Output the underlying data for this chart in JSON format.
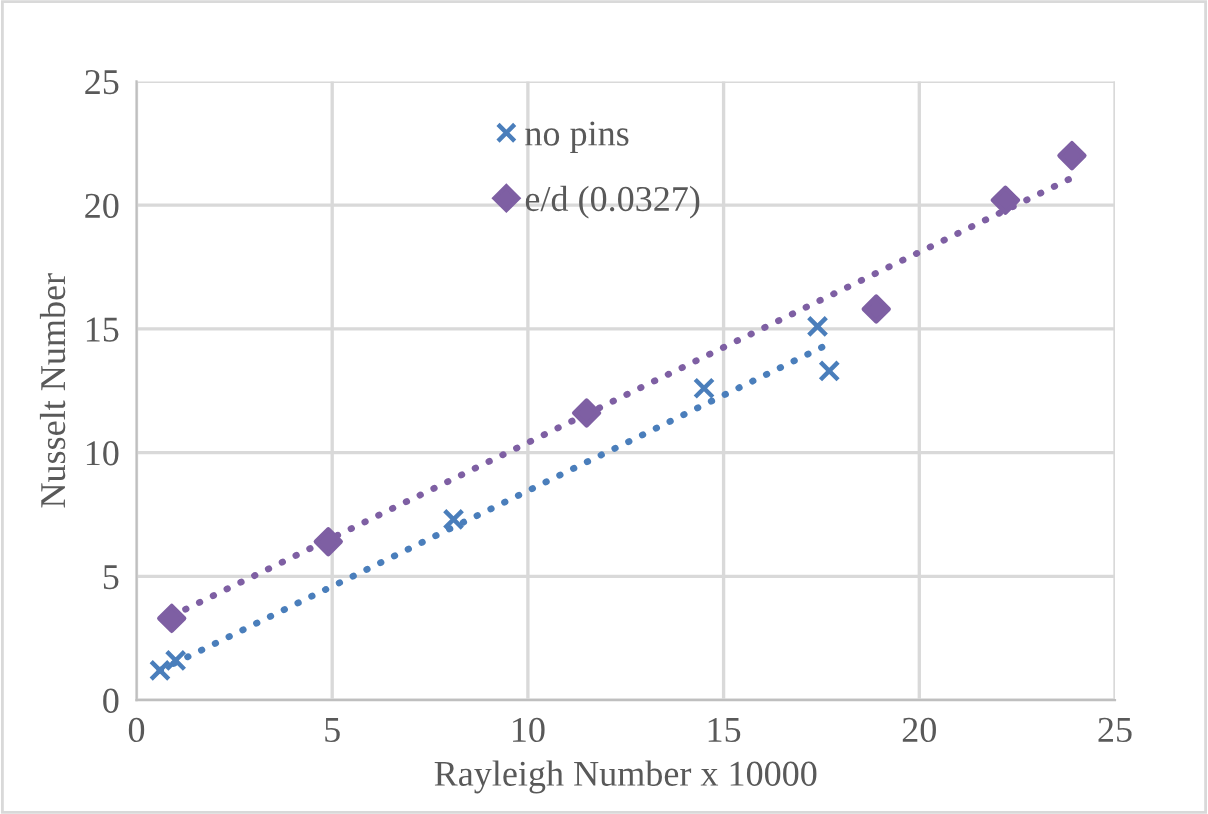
{
  "chart_data": {
    "type": "scatter",
    "xlabel": "Rayleigh Number x 10000",
    "ylabel": "Nusselt Number",
    "xlim": [
      0,
      25
    ],
    "ylim": [
      0,
      25
    ],
    "xticks": [
      0,
      5,
      10,
      15,
      20,
      25
    ],
    "yticks": [
      0,
      5,
      10,
      15,
      20,
      25
    ],
    "grid": true,
    "legend": "top",
    "series": [
      {
        "name": "no pins",
        "color": "#4a7ebb",
        "marker": "cross",
        "x": [
          0.6,
          1.0,
          8.1,
          14.5,
          17.4,
          17.7
        ],
        "values": [
          1.2,
          1.6,
          7.3,
          12.6,
          15.1,
          13.3
        ]
      },
      {
        "name": "e/d (0.0327)",
        "color": "#7e5fa3",
        "marker": "diamond",
        "x": [
          0.9,
          4.9,
          11.5,
          18.9,
          22.2,
          23.9
        ],
        "values": [
          3.3,
          6.4,
          11.6,
          15.8,
          20.2,
          22.0
        ]
      },
      {
        "type": "line",
        "color": "#4a7ebb",
        "line_style": "dotted",
        "marker": "none",
        "x": [
          0.6,
          17.7
        ],
        "values": [
          1.2,
          14.4
        ]
      },
      {
        "type": "line",
        "color": "#7e5fa3",
        "line_style": "dotted",
        "marker": "none",
        "x": [
          0.9,
          23.9
        ],
        "values": [
          3.4,
          21.1
        ]
      }
    ]
  }
}
